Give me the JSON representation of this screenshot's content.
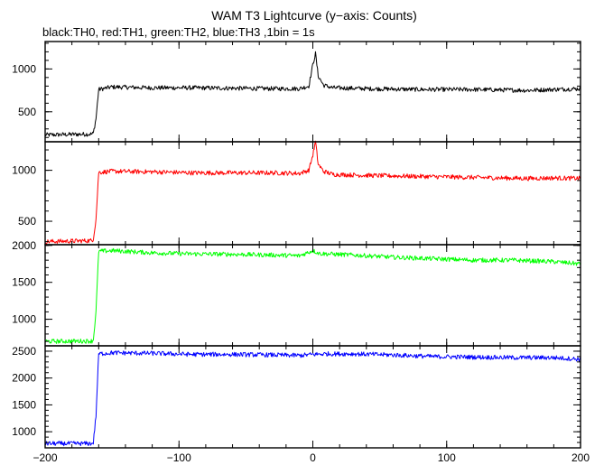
{
  "figure": {
    "title": "WAM T3 Lightcurve (y−axis: Counts)",
    "subtitle": "black:TH0, red:TH1, green:TH2, blue:TH3 ,1bin = 1s"
  },
  "chart_data": {
    "type": "line",
    "title": "WAM T3 Lightcurve (y−axis: Counts)",
    "subtitle": "black:TH0, red:TH1, green:TH2, blue:TH3 ,1bin = 1s",
    "xlabel": "",
    "ylabel": "",
    "xlim": [
      -200,
      200
    ],
    "x_ticks": [
      -200,
      -100,
      0,
      100,
      200
    ],
    "x_tick_labels": [
      "−200",
      "−100",
      "0",
      "100",
      "200"
    ],
    "bin_seconds": 1,
    "grid": false,
    "panels": [
      {
        "color": "#000000",
        "ylim": [
          150,
          1320
        ],
        "y_ticks": [
          500,
          1000
        ],
        "y_tick_labels": [
          "500",
          "1000"
        ],
        "x": [
          -200,
          -165,
          -164,
          -162,
          -160,
          -150,
          -120,
          -90,
          -60,
          -30,
          -10,
          -3,
          0,
          2,
          4,
          8,
          15,
          40,
          80,
          120,
          160,
          180,
          200
        ],
        "values": [
          230,
          240,
          250,
          420,
          760,
          790,
          780,
          780,
          775,
          770,
          770,
          800,
          1050,
          1180,
          920,
          810,
          780,
          770,
          760,
          760,
          750,
          760,
          770
        ]
      },
      {
        "color": "#ff0000",
        "ylim": [
          270,
          1280
        ],
        "y_ticks": [
          500,
          1000
        ],
        "y_tick_labels": [
          "500",
          "1000"
        ],
        "x": [
          -200,
          -165,
          -164,
          -162,
          -160,
          -150,
          -120,
          -90,
          -60,
          -30,
          -10,
          -3,
          0,
          2,
          4,
          8,
          15,
          40,
          80,
          120,
          160,
          180,
          200
        ],
        "values": [
          300,
          310,
          330,
          520,
          980,
          990,
          985,
          975,
          975,
          975,
          970,
          1000,
          1150,
          1280,
          1060,
          990,
          960,
          950,
          940,
          930,
          920,
          925,
          920
        ]
      },
      {
        "color": "#00ff00",
        "ylim": [
          640,
          2010
        ],
        "y_ticks": [
          1000,
          1500,
          2000
        ],
        "y_tick_labels": [
          "1000",
          "1500",
          "2000"
        ],
        "x": [
          -200,
          -165,
          -164,
          -162,
          -160,
          -150,
          -120,
          -90,
          -60,
          -30,
          -10,
          0,
          5,
          30,
          60,
          90,
          120,
          150,
          180,
          200
        ],
        "values": [
          700,
          705,
          720,
          1100,
          1920,
          1930,
          1900,
          1885,
          1880,
          1870,
          1860,
          1930,
          1890,
          1870,
          1840,
          1820,
          1800,
          1800,
          1780,
          1750
        ]
      },
      {
        "color": "#0000ff",
        "ylim": [
          700,
          2600
        ],
        "y_ticks": [
          1000,
          1500,
          2000,
          2500
        ],
        "y_tick_labels": [
          "1000",
          "1500",
          "2000",
          "2500"
        ],
        "x": [
          -200,
          -165,
          -164,
          -162,
          -160,
          -150,
          -120,
          -90,
          -60,
          -30,
          -10,
          0,
          10,
          30,
          60,
          90,
          120,
          150,
          180,
          200
        ],
        "values": [
          780,
          780,
          800,
          1300,
          2450,
          2470,
          2460,
          2440,
          2440,
          2430,
          2420,
          2440,
          2450,
          2450,
          2430,
          2400,
          2390,
          2380,
          2380,
          2350
        ]
      }
    ]
  }
}
